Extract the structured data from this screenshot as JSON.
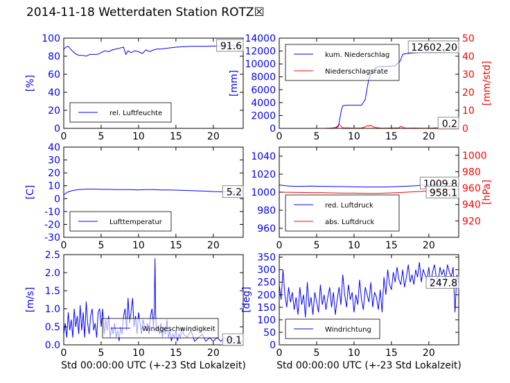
{
  "title": "2014-11-18 Wetterdaten Station ROTZ☒",
  "colors": {
    "primary": "#0000ff",
    "secondary": "#ff0000",
    "axis": "#000000"
  },
  "chart_data": [
    {
      "type": "line",
      "id": "humidity",
      "xlim": [
        0,
        24
      ],
      "xticks": [
        0,
        5,
        10,
        15,
        20
      ],
      "ylim": [
        0,
        100
      ],
      "yticks": [
        0,
        20,
        40,
        60,
        80,
        100
      ],
      "ylabel": "[%]",
      "legend": {
        "placement": "lower-left",
        "entries": [
          "rel. Luftfeuchte"
        ]
      },
      "last_value_label": "91.6",
      "series": [
        {
          "name": "rel. Luftfeuchte",
          "color": "#0000ff",
          "x": [
            0,
            0.3,
            0.6,
            1,
            1.5,
            2,
            2.5,
            3,
            3.5,
            4,
            4.5,
            5,
            5.5,
            6,
            6.5,
            7,
            7.5,
            8,
            8.3,
            8.6,
            9,
            9.5,
            10,
            10.5,
            11,
            11.5,
            12,
            12.5,
            13,
            14,
            15,
            16,
            17,
            18,
            19,
            20,
            21,
            22,
            23,
            24
          ],
          "y": [
            88,
            90,
            91,
            87,
            83,
            81,
            81,
            80,
            82,
            82,
            82,
            84,
            86,
            85,
            87,
            88,
            89,
            90,
            82,
            86,
            84,
            86,
            85,
            83,
            87,
            85,
            87,
            88,
            88,
            89,
            90,
            90.5,
            91,
            91,
            91,
            91.2,
            91.3,
            91.5,
            91.6,
            91.6
          ]
        }
      ]
    },
    {
      "type": "line",
      "id": "precipitation",
      "xlim": [
        0,
        24
      ],
      "xticks": [
        0,
        5,
        10,
        15,
        20
      ],
      "ylim": [
        0,
        14000
      ],
      "yticks": [
        0,
        2000,
        4000,
        6000,
        8000,
        10000,
        12000,
        14000
      ],
      "ylabel": "[mm]",
      "ylim_right": [
        0,
        50
      ],
      "yticks_right": [
        0,
        10,
        20,
        30,
        40,
        50
      ],
      "ylabel_right": "[mm/std]",
      "legend": {
        "placement": "upper-left",
        "entries": [
          "kum. Niederschlag",
          "Niederschlagsrate"
        ]
      },
      "last_value_label": "12602.20",
      "last_value_label_right": "0.2",
      "series": [
        {
          "name": "kum. Niederschlag",
          "color": "#0000ff",
          "axis": "left",
          "x": [
            0,
            7.5,
            7.9,
            8.1,
            8.3,
            8.5,
            9,
            10,
            11,
            11.5,
            11.8,
            12,
            12.3,
            12.6,
            13,
            13.5,
            14,
            15.5,
            16.2,
            16.5,
            17,
            18,
            19,
            20,
            21,
            22,
            22.5,
            23,
            23.5,
            24
          ],
          "y": [
            0,
            0,
            300,
            1500,
            2800,
            3500,
            3600,
            3600,
            3600,
            4500,
            6500,
            7800,
            8500,
            9000,
            9500,
            9600,
            9600,
            9700,
            10500,
            11500,
            11600,
            11700,
            11750,
            11800,
            11800,
            11850,
            12300,
            12550,
            12600,
            12602.2
          ]
        },
        {
          "name": "Niederschlagsrate",
          "color": "#ff0000",
          "axis": "right",
          "x": [
            0,
            6,
            7,
            7.5,
            7.8,
            8,
            8.2,
            8.4,
            8.6,
            9,
            10,
            11,
            11.5,
            11.8,
            12,
            12.2,
            12.5,
            13,
            13.5,
            14,
            15,
            16,
            16.3,
            16.6,
            17,
            18,
            19,
            20,
            21,
            22,
            22.5,
            23,
            24
          ],
          "y": [
            0,
            0,
            0.2,
            0.5,
            1.2,
            2.5,
            1.5,
            0.6,
            0.2,
            0.3,
            0.1,
            0.2,
            0.8,
            1.5,
            1.2,
            1.8,
            0.9,
            0.4,
            0.2,
            0.1,
            0.2,
            0.3,
            1.2,
            0.4,
            0.1,
            0.2,
            0.1,
            0.1,
            0.3,
            0.2,
            0.8,
            0.4,
            0.2
          ]
        }
      ]
    },
    {
      "type": "line",
      "id": "temperature",
      "xlim": [
        0,
        24
      ],
      "xticks": [
        0,
        5,
        10,
        15,
        20
      ],
      "ylim": [
        -30,
        40
      ],
      "yticks": [
        -30,
        -20,
        -10,
        0,
        10,
        20,
        30,
        40
      ],
      "ylabel": "[C]",
      "legend": {
        "placement": "lower-left",
        "entries": [
          "Lufttemperatur"
        ]
      },
      "last_value_label": "5.2",
      "series": [
        {
          "name": "Lufttemperatur",
          "color": "#0000ff",
          "x": [
            0,
            0.5,
            1,
            1.5,
            2,
            3,
            4,
            5,
            6,
            7,
            8,
            9,
            10,
            11,
            12,
            13,
            14,
            15,
            16,
            17,
            18,
            19,
            20,
            21,
            22,
            23,
            24
          ],
          "y": [
            3,
            5,
            6,
            6.6,
            7,
            7.4,
            7.4,
            7.2,
            7.2,
            7,
            7,
            7,
            6.8,
            7,
            7,
            6.8,
            6.8,
            6.6,
            6.4,
            6.2,
            6,
            5.8,
            5.5,
            5.3,
            5.2,
            5.2,
            5.2
          ]
        }
      ]
    },
    {
      "type": "line",
      "id": "pressure",
      "xlim": [
        0,
        24
      ],
      "xticks": [
        0,
        5,
        10,
        15,
        20
      ],
      "ylim": [
        950,
        1050
      ],
      "yticks": [
        960,
        980,
        1000,
        1020,
        1040
      ],
      "ylabel": "",
      "ylim_right": [
        900,
        1010
      ],
      "yticks_right": [
        920,
        940,
        960,
        980,
        1000
      ],
      "ylabel_right": "[hPa]",
      "legend": {
        "placement": "lower-left",
        "entries": [
          "red. Luftdruck",
          "abs. Luftdruck"
        ]
      },
      "last_value_label": "1009.8",
      "last_value_label_right": "958.1",
      "series": [
        {
          "name": "red. Luftdruck",
          "color": "#0000ff",
          "axis": "left",
          "x": [
            0,
            1,
            2,
            3,
            4,
            6,
            8,
            10,
            12,
            14,
            16,
            18,
            20,
            22,
            23,
            24
          ],
          "y": [
            1008,
            1007,
            1006.5,
            1006.5,
            1006.8,
            1006.5,
            1006.2,
            1006,
            1005.8,
            1005.8,
            1006.2,
            1007,
            1008.2,
            1009.2,
            1009.6,
            1009.8
          ]
        },
        {
          "name": "abs. Luftdruck",
          "color": "#ff0000",
          "axis": "right",
          "x": [
            0,
            2,
            4,
            6,
            8,
            10,
            12,
            13,
            14,
            16,
            18,
            20,
            22,
            23,
            24
          ],
          "y": [
            955,
            954.8,
            954.5,
            954.3,
            954,
            953.8,
            953.5,
            953.5,
            953.8,
            954.5,
            955.5,
            956.5,
            957.5,
            958,
            958.1
          ]
        }
      ]
    },
    {
      "type": "line",
      "id": "windspeed",
      "xlim": [
        0,
        24
      ],
      "xticks": [
        0,
        5,
        10,
        15,
        20
      ],
      "ylim": [
        0,
        2.5
      ],
      "yticks": [
        0,
        0.5,
        1,
        1.5,
        2,
        2.5
      ],
      "yticklabels": [
        "0.0",
        "0.5",
        "1.0",
        "1.5",
        "2.0",
        "2.5"
      ],
      "xlabel": "Std 00:00:00 UTC (+-23 Std Lokalzeit)",
      "ylabel": "[m/s]",
      "legend": {
        "placement": "lower-center",
        "entries": [
          "Windgeschwindigkeit"
        ]
      },
      "last_value_label": "0.1",
      "series": [
        {
          "name": "Windgeschwindigkeit",
          "color": "#0000ff",
          "x": [
            0,
            0.2,
            0.4,
            0.6,
            0.8,
            1,
            1.2,
            1.4,
            1.6,
            1.8,
            2,
            2.2,
            2.4,
            2.6,
            2.8,
            3,
            3.2,
            3.4,
            3.6,
            3.8,
            4,
            4.2,
            4.4,
            4.6,
            4.8,
            5,
            5.2,
            5.4,
            5.6,
            5.8,
            6,
            6.2,
            6.4,
            6.6,
            6.8,
            7,
            7.2,
            7.4,
            7.6,
            7.8,
            8,
            8.2,
            8.4,
            8.6,
            8.8,
            9,
            9.2,
            9.4,
            9.6,
            9.8,
            10,
            10.2,
            10.4,
            10.6,
            10.8,
            11,
            11.2,
            11.4,
            11.6,
            11.8,
            12,
            12.1,
            12.2,
            12.3,
            12.4,
            12.6,
            12.8,
            13,
            13.2,
            13.4,
            13.6,
            13.8,
            14,
            14.2,
            14.4,
            14.6,
            14.8,
            15,
            15.2,
            15.4,
            15.6,
            15.8,
            16,
            16.5,
            17,
            17.5,
            18,
            18.5,
            19,
            19.5,
            20,
            20.5,
            21,
            21.5,
            22,
            22.5,
            23,
            23.5,
            24
          ],
          "y": [
            0.3,
            0.6,
            0.2,
            0.9,
            0.4,
            0.7,
            0.2,
            1.0,
            0.5,
            0.8,
            0.3,
            1.1,
            0.4,
            0.9,
            0.2,
            1.2,
            0.6,
            0.3,
            0.8,
            1.0,
            0.4,
            0.6,
            0.2,
            0.9,
            1.0,
            0.5,
            1.0,
            0.3,
            0.7,
            0.4,
            0.8,
            0.2,
            0.5,
            0.3,
            0.6,
            0.2,
            0.4,
            0.1,
            0.5,
            0.3,
            0.8,
            1.0,
            0.4,
            1.3,
            0.6,
            0.9,
            1.3,
            0.5,
            0.8,
            0.3,
            0.9,
            0.6,
            0.3,
            0.7,
            0.5,
            0.4,
            0.6,
            0.3,
            0.8,
            1.0,
            0.5,
            0.9,
            2.4,
            0.8,
            0.4,
            0.5,
            0.3,
            0.6,
            0.2,
            0.5,
            0.3,
            0.7,
            0.2,
            0.4,
            0.1,
            0.3,
            0.2,
            0.4,
            0.1,
            0.3,
            0.2,
            0.5,
            0.3,
            0.2,
            0.4,
            0.1,
            0.2,
            0.3,
            0.1,
            0.2,
            0.1,
            0.2,
            0.1,
            0.2,
            0.1,
            0.2,
            0.1,
            0.1,
            0.1
          ]
        }
      ]
    },
    {
      "type": "line",
      "id": "winddirection",
      "xlim": [
        0,
        24
      ],
      "xticks": [
        0,
        5,
        10,
        15,
        20
      ],
      "ylim": [
        0,
        360
      ],
      "yticks": [
        0,
        50,
        100,
        150,
        200,
        250,
        300,
        350
      ],
      "xlabel": "Std 00:00:00 UTC (+-23 Std Lokalzeit)",
      "ylabel": "[deg]",
      "legend": {
        "placement": "lower-left",
        "entries": [
          "Windrichtung"
        ]
      },
      "last_value_label": "247.8",
      "series": [
        {
          "name": "Windrichtung",
          "color": "#0000ff",
          "x": [
            0,
            0.25,
            0.5,
            0.75,
            1,
            1.25,
            1.5,
            1.75,
            2,
            2.25,
            2.5,
            2.75,
            3,
            3.25,
            3.5,
            3.75,
            4,
            4.25,
            4.5,
            4.75,
            5,
            5.25,
            5.5,
            5.75,
            6,
            6.25,
            6.5,
            6.75,
            7,
            7.25,
            7.5,
            7.75,
            8,
            8.25,
            8.5,
            8.75,
            9,
            9.25,
            9.5,
            9.75,
            10,
            10.25,
            10.5,
            10.75,
            11,
            11.25,
            11.5,
            11.75,
            12,
            12.25,
            12.5,
            12.75,
            13,
            13.25,
            13.5,
            13.75,
            14,
            14.25,
            14.5,
            14.75,
            15,
            15.25,
            15.5,
            15.75,
            16,
            16.25,
            16.5,
            16.75,
            17,
            17.25,
            17.5,
            17.75,
            18,
            18.25,
            18.5,
            18.75,
            19,
            19.25,
            19.5,
            19.75,
            20,
            20.25,
            20.5,
            20.75,
            21,
            21.25,
            21.5,
            21.75,
            22,
            22.25,
            22.5,
            22.75,
            23,
            23.25,
            23.5,
            23.75,
            24
          ],
          "y": [
            240,
            180,
            300,
            200,
            150,
            230,
            170,
            210,
            140,
            190,
            120,
            230,
            160,
            200,
            110,
            250,
            150,
            190,
            120,
            210,
            170,
            130,
            240,
            160,
            200,
            140,
            190,
            230,
            150,
            210,
            120,
            180,
            230,
            160,
            280,
            200,
            150,
            240,
            180,
            210,
            130,
            200,
            160,
            260,
            180,
            140,
            230,
            200,
            170,
            250,
            150,
            210,
            190,
            140,
            220,
            130,
            270,
            200,
            300,
            240,
            220,
            290,
            250,
            310,
            260,
            240,
            300,
            230,
            270,
            320,
            250,
            280,
            240,
            300,
            270,
            330,
            250,
            300,
            280,
            260,
            310,
            240,
            290,
            320,
            270,
            250,
            310,
            280,
            300,
            260,
            320,
            290,
            270,
            310,
            130,
            280,
            247.8
          ]
        }
      ]
    }
  ]
}
